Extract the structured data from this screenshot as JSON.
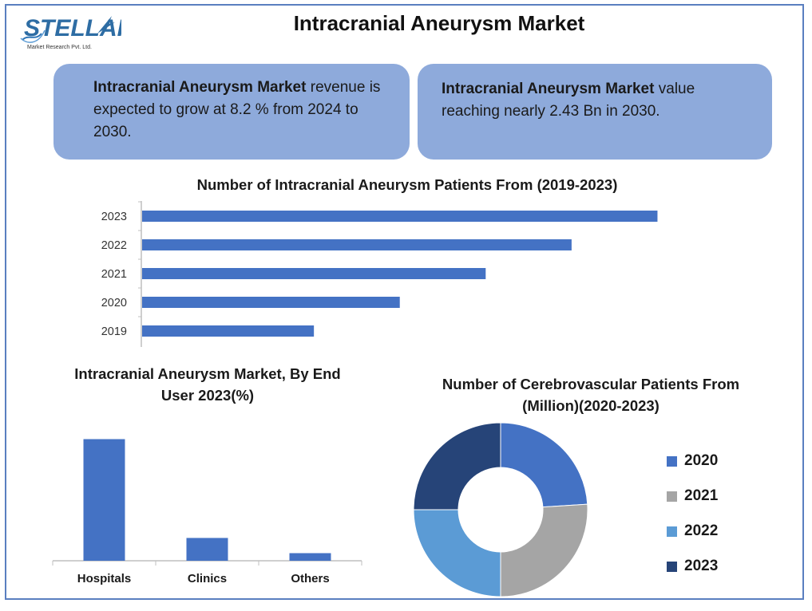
{
  "logo": {
    "name": "STELLAR",
    "tagline": "Market Research Pvt. Ltd."
  },
  "title": "Intracranial Aneurysm Market",
  "info_left": {
    "bold": "Intracranial Aneurysm Market",
    "text": " revenue is expected to grow at 8.2 % from 2024 to 2030."
  },
  "info_right": {
    "bold": "Intracranial Aneurysm Market",
    "text": " value reaching nearly 2.43 Bn in 2030."
  },
  "colors": {
    "accent": "#4472c4",
    "gray": "#a5a5a5",
    "light_blue": "#5b9bd5",
    "dark_blue": "#264478",
    "box": "#8eaadb",
    "border": "#5a7fc0"
  },
  "chart_data": [
    {
      "type": "bar",
      "orientation": "horizontal",
      "title": "Number of Intracranial Aneurysm Patients From (2019-2023)",
      "categories": [
        "2023",
        "2022",
        "2021",
        "2020",
        "2019"
      ],
      "values": [
        6,
        5,
        4,
        3,
        2
      ],
      "xlim": [
        0,
        6.6
      ],
      "grid": false,
      "color": "#4472c4"
    },
    {
      "type": "bar",
      "title": "Intracranial Aneurysm Market, By End User 2023(%)",
      "categories": [
        "Hospitals",
        "Clinics",
        "Others"
      ],
      "values": [
        80,
        15,
        5
      ],
      "ylim": [
        0,
        85
      ],
      "grid": false,
      "color": "#4472c4"
    },
    {
      "type": "pie",
      "subtype": "donut",
      "title": "Number of Cerebrovascular Patients From (Million)(2020-2023)",
      "labels": [
        "2020",
        "2021",
        "2022",
        "2023"
      ],
      "values": [
        24,
        26,
        25,
        25
      ],
      "colors": [
        "#4472c4",
        "#a5a5a5",
        "#5b9bd5",
        "#264478"
      ],
      "legend": "right"
    }
  ]
}
